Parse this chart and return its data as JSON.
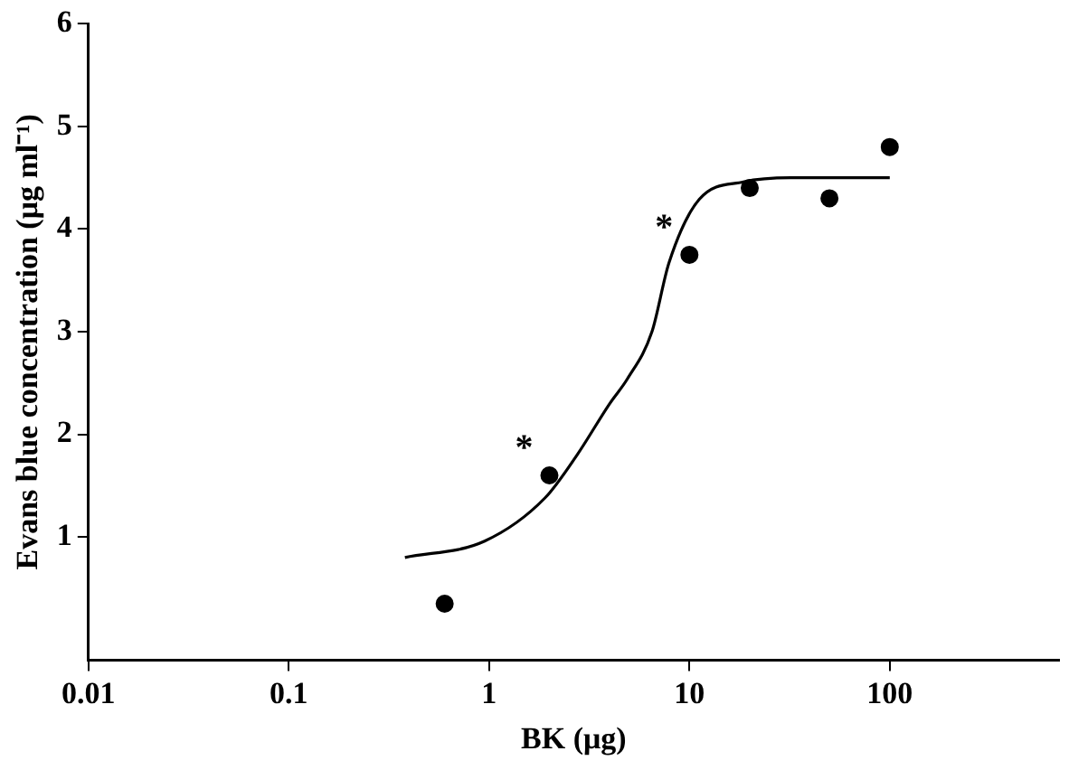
{
  "chart_data": {
    "type": "scatter",
    "xlabel": "BK (μg)",
    "ylabel": "Evans blue concentration (μg ml⁻¹)",
    "log": "x",
    "grid": false,
    "legend": false,
    "marker": "circle",
    "xlim": [
      0.01,
      700
    ],
    "xticks": [
      0.01,
      0.1,
      1,
      10,
      100
    ],
    "ylim": [
      -0.2,
      6
    ],
    "yticks": [
      1,
      2,
      3,
      4,
      5,
      6
    ],
    "series": [
      {
        "color": "#000000",
        "x": [
          0.6,
          2,
          10,
          20,
          50,
          100
        ],
        "values": [
          0.35,
          1.6,
          3.75,
          4.4,
          4.3,
          4.8
        ]
      },
      {
        "type": "line",
        "color": "#000000",
        "marker": "none",
        "line_style": "solid",
        "x": [
          0.38,
          0.95,
          1.9,
          2.75,
          4,
          4.9,
          6.5,
          7.9,
          11.2,
          18.6,
          32,
          100
        ],
        "values": [
          0.8,
          0.96,
          1.38,
          1.8,
          2.3,
          2.54,
          3.0,
          3.67,
          4.29,
          4.46,
          4.5,
          4.5
        ]
      }
    ],
    "annotations": [
      {
        "text": "*",
        "x": 2,
        "y": 1.6
      },
      {
        "text": "*",
        "x": 10,
        "y": 3.75
      }
    ]
  }
}
